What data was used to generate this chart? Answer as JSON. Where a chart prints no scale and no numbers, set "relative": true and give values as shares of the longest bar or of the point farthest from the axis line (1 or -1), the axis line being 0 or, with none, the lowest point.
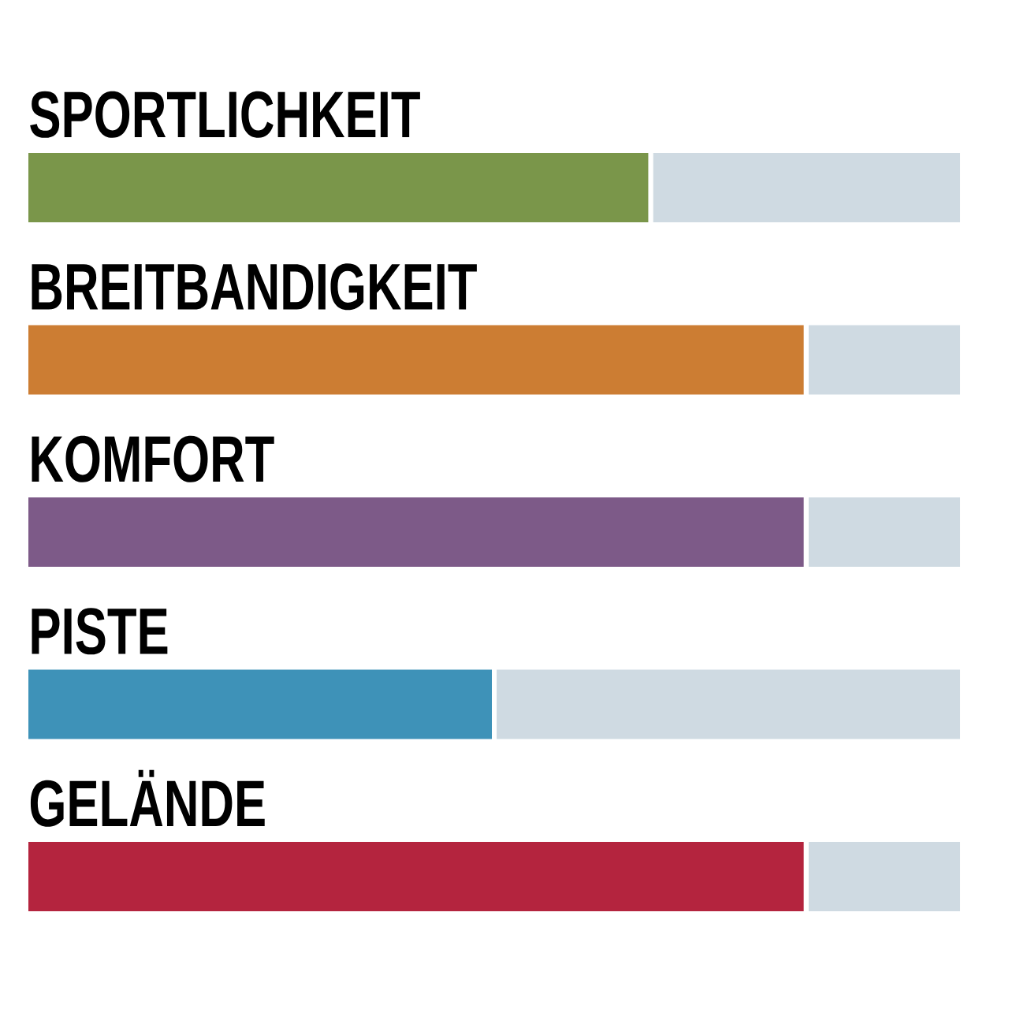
{
  "chart_data": {
    "type": "bar",
    "orientation": "horizontal",
    "stacked": true,
    "relative": true,
    "categories": [
      "SPORTLICHKEIT",
      "BREITBANDIGKEIT",
      "KOMFORT",
      "PISTE",
      "GELÄNDE"
    ],
    "series": [
      {
        "colors": [
          "#7a964a",
          "#cc7d33",
          "#7d5a88",
          "#3e92b8",
          "#b4243e"
        ],
        "values": [
          0.667,
          0.833,
          0.833,
          0.5,
          0.833
        ]
      },
      {
        "color": "#cfdae2",
        "values": [
          0.333,
          0.167,
          0.167,
          0.5,
          0.167
        ]
      }
    ]
  }
}
